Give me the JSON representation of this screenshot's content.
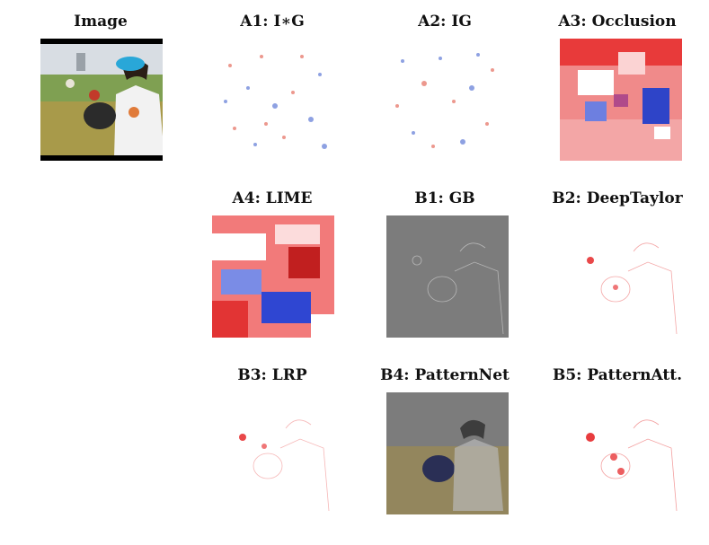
{
  "figure": {
    "panels": [
      {
        "id": "image",
        "title": "Image"
      },
      {
        "id": "a1",
        "title": "A1: I∗G"
      },
      {
        "id": "a2",
        "title": "A2: IG"
      },
      {
        "id": "a3",
        "title": "A3: Occlusion"
      },
      {
        "id": "a4",
        "title": "A4: LIME"
      },
      {
        "id": "b1",
        "title": "B1: GB"
      },
      {
        "id": "b2",
        "title": "B2: DeepTaylor"
      },
      {
        "id": "b3",
        "title": "B3: LRP"
      },
      {
        "id": "b4",
        "title": "B4: PatternNet"
      },
      {
        "id": "b5",
        "title": "B5: PatternAtt."
      }
    ]
  },
  "colors": {
    "positive": "#e41a1c",
    "negative": "#2c3fd1",
    "neutral": "#ffffff",
    "gray_map": "#7c7c7c"
  }
}
